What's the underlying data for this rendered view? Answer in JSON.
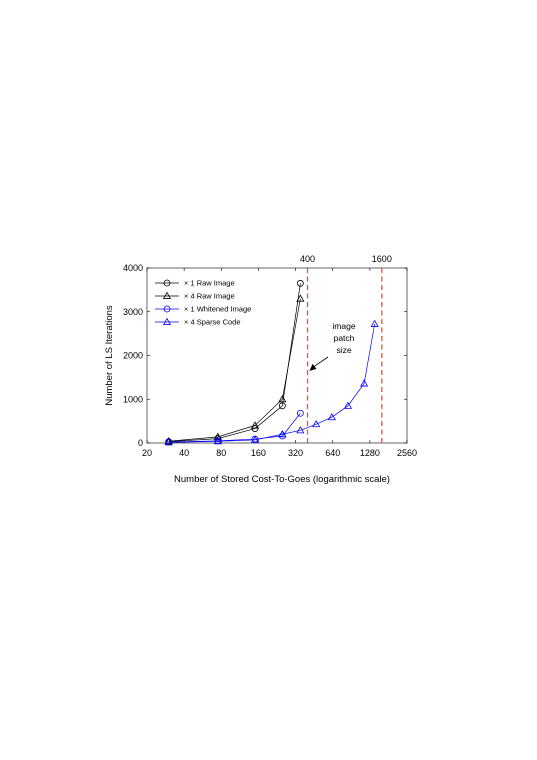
{
  "chart_data": {
    "type": "line",
    "xlabel": "Number of Stored Cost-To-Goes (logarithmic scale)",
    "ylabel": "Number of LS Iterations",
    "x_scale": "log2",
    "xlim": [
      20,
      2560
    ],
    "ylim": [
      0,
      4000
    ],
    "x_ticks": [
      20,
      40,
      80,
      160,
      320,
      640,
      1280,
      2560
    ],
    "x_tick_labels": [
      "20",
      "40",
      "80",
      "160",
      "320",
      "640",
      "1280",
      "2560"
    ],
    "y_ticks": [
      0,
      1000,
      2000,
      3000,
      4000
    ],
    "y_tick_labels": [
      "0",
      "1000",
      "2000",
      "3000",
      "4000"
    ],
    "grid": false,
    "legend_position": "top-left",
    "series": [
      {
        "name": "× 1 Raw Image",
        "color": "#000000",
        "marker": "circle",
        "x": [
          30,
          75,
          150,
          250,
          350
        ],
        "y": [
          30,
          100,
          330,
          850,
          3650
        ]
      },
      {
        "name": "× 4 Raw Image",
        "color": "#000000",
        "marker": "triangle",
        "x": [
          30,
          75,
          150,
          250,
          350
        ],
        "y": [
          40,
          140,
          400,
          1000,
          3300
        ]
      },
      {
        "name": "× 1 Whitened Image",
        "color": "#0000ff",
        "marker": "circle",
        "x": [
          30,
          75,
          150,
          250,
          350
        ],
        "y": [
          20,
          50,
          90,
          160,
          680
        ]
      },
      {
        "name": "× 4 Sparse Code",
        "color": "#0000ff",
        "marker": "triangle",
        "x": [
          30,
          75,
          150,
          250,
          350,
          470,
          630,
          850,
          1150,
          1400
        ],
        "y": [
          15,
          40,
          70,
          200,
          290,
          430,
          590,
          850,
          1360,
          2720
        ]
      }
    ],
    "reference_lines": [
      {
        "x": 400,
        "label": "400",
        "color": "#e8542a"
      },
      {
        "x": 1600,
        "label": "1600",
        "color": "#e8542a"
      }
    ],
    "annotation": {
      "lines": [
        "image",
        "patch",
        "size"
      ],
      "target_x": 400,
      "target_y": 1650
    }
  }
}
